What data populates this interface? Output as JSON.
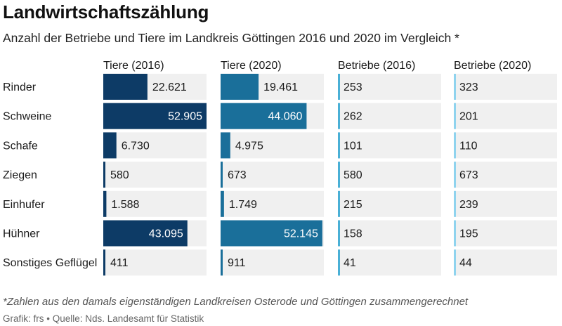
{
  "chart_data": {
    "type": "table",
    "title": "Landwirtschaftszählung",
    "subtitle": "Anzahl der Betriebe und Tiere im Landkreis Göttingen 2016 und 2020 im Vergleich *",
    "categories": [
      "Rinder",
      "Schweine",
      "Schafe",
      "Ziegen",
      "Einhufer",
      "Hühner",
      "Sonstiges Geflügel"
    ],
    "series": [
      {
        "name": "Tiere (2016)",
        "kind": "bar",
        "color": "#0d3b66",
        "values": [
          22621,
          52905,
          6730,
          580,
          1588,
          43095,
          411
        ],
        "labels": [
          "22.621",
          "52.905",
          "6.730",
          "580",
          "1.588",
          "43.095",
          "411"
        ]
      },
      {
        "name": "Tiere (2020)",
        "kind": "bar",
        "color": "#1a6f9a",
        "values": [
          19461,
          44060,
          4975,
          673,
          1749,
          52145,
          911
        ],
        "labels": [
          "19.461",
          "44.060",
          "4.975",
          "673",
          "1.749",
          "52.145",
          "911"
        ]
      },
      {
        "name": "Betriebe (2016)",
        "kind": "marker",
        "color": "#4ab0d6",
        "values": [
          253,
          262,
          101,
          580,
          215,
          158,
          41
        ],
        "labels": [
          "253",
          "262",
          "101",
          "580",
          "215",
          "158",
          "41"
        ]
      },
      {
        "name": "Betriebe (2020)",
        "kind": "marker",
        "color": "#8fd3ee",
        "values": [
          323,
          201,
          110,
          673,
          239,
          195,
          44
        ],
        "labels": [
          "323",
          "201",
          "110",
          "673",
          "239",
          "195",
          "44"
        ]
      }
    ],
    "bar_max": 52905,
    "grid": false,
    "legend": "none"
  },
  "footer": {
    "note": "*Zahlen aus den damals eigenständigen Landkreisen Osterode und Göttingen zusammengerechnet",
    "source": "Grafik: frs • Quelle: Nds. Landesamt für Statistik"
  },
  "colors": {
    "track": "#f0f0f0",
    "label_dark": "#ffffff",
    "label_light": "#1a1a1a"
  }
}
